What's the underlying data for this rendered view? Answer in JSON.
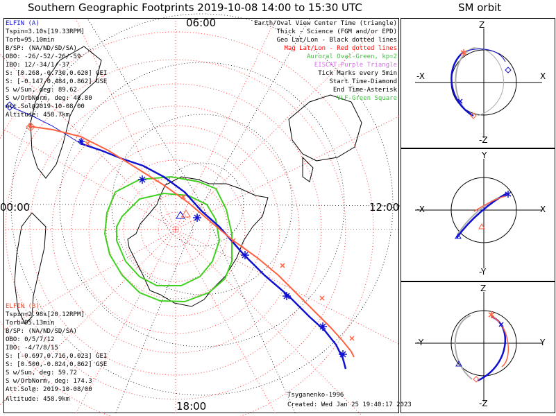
{
  "header": {
    "main_title": "Southern Geographic Footprints 2019-10-08 14:00 to 15:30 UTC",
    "orbit_title": "SM orbit"
  },
  "map": {
    "mlt_labels": {
      "top": "06:00",
      "left": "00:00",
      "right": "12:00",
      "bottom": "18:00"
    }
  },
  "elfin_a": {
    "name": "ELFIN (A)",
    "lines": [
      "Tspin=3.10s[19.33RPM]",
      "Torb=95.10min",
      "B/SP: (NA/ND/SD/SA)",
      "OBO: -26/-52/-26/-59",
      "IBO: 12/-34/1/-37",
      "S: [0.268,-0.736,0.620] GEI",
      "S: [-0.147,0.484,0.862] GSE",
      "S w/Sun, deg: 89.62",
      "S w/OrbNorm, deg: 48.80",
      "Att.Sol@2019-10-08/00",
      "Altitude: 458.7km"
    ]
  },
  "elfin_b": {
    "name": "ELFIN (B)",
    "lines": [
      "Tspin=2.98s[20.12RPM]",
      "Torb=95.13min",
      "B/SP: (NA/ND/SD/SA)",
      "OBO: 0/5/7/12",
      "IBO: -4/7/8/15",
      "S: [-0.697,0.716,0.023] GEI",
      "S: [0.500,-0.824,0.862] GSE",
      "S w/Sun, deg: 59.72",
      "S w/OrbNorm, deg: 174.3",
      "Att.Sol@: 2019-10-08/00",
      "Altitude: 458.9km"
    ]
  },
  "legend": {
    "earth_oval": "Earth/Oval View Center Time (triangle)",
    "thick": "Thick - Science (FGM and/or EPD)",
    "geo": "Geo Lat/Lon - Black dotted lines",
    "mag": "Mag Lat/Lon - Red dotted lines",
    "auroral": "Auroral Oval-Green, kp=2",
    "eiscat": "EISCAT-Purple Triangle",
    "ticks": "Tick Marks every 5min",
    "start": "Start Time-Diamond",
    "end": "End Time-Asterisk",
    "vlf": "VLF-Green Square"
  },
  "footer": {
    "author": "Tsyganenko-1996",
    "created": "Created: Wed Jan 25 19:40:17 2023"
  },
  "orbit_panels": {
    "xz": {
      "top": "Z",
      "bottom": "-Z",
      "left": "-X",
      "right": "X"
    },
    "xy": {
      "top": "Y",
      "bottom": "-Y",
      "left": "-X",
      "right": "X"
    },
    "yz": {
      "top": "Z",
      "bottom": "-Z",
      "left": "-Y",
      "right": "Y"
    }
  },
  "colors": {
    "elfin_a": "#1010d0",
    "elfin_b": "#ff6040",
    "auroral_oval": "#40d020",
    "mag_grid": "#ff3030",
    "geo_grid": "#000000"
  }
}
